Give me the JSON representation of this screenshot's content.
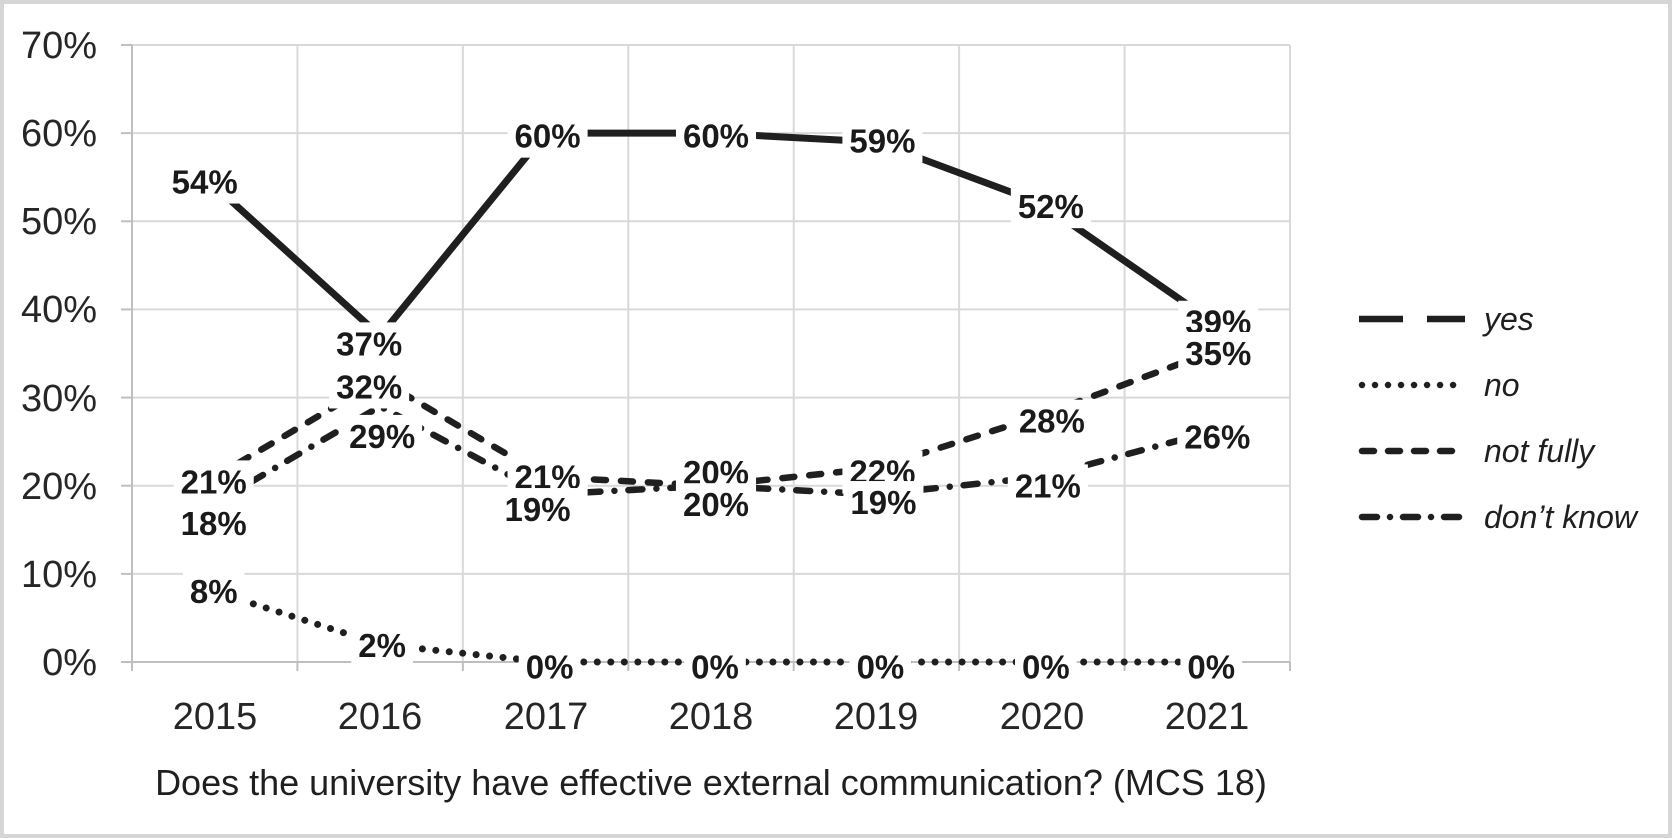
{
  "chart_data": {
    "type": "line",
    "caption": "Does the university have effective external communication? (MCS 18)",
    "categories": [
      "2015",
      "2016",
      "2017",
      "2018",
      "2019",
      "2020",
      "2021"
    ],
    "y_axis": {
      "min": 0,
      "max": 70,
      "step": 10,
      "tick_labels": [
        "0%",
        "10%",
        "20%",
        "30%",
        "40%",
        "50%",
        "60%",
        "70%"
      ]
    },
    "grid": true,
    "legend_position": "right",
    "series": [
      {
        "name": "yes",
        "line_style": "solid",
        "values": [
          54,
          37,
          60,
          60,
          59,
          52,
          39
        ],
        "point_labels": [
          "54%",
          "37%",
          "60%",
          "60%",
          "59%",
          "52%",
          "39%"
        ],
        "label_offsets": [
          [
            -10,
            -4
          ],
          [
            -11,
            8
          ],
          [
            2,
            3
          ],
          [
            5,
            3
          ],
          [
            6,
            -1
          ],
          [
            9,
            3
          ],
          [
            11,
            4
          ]
        ]
      },
      {
        "name": "no",
        "line_style": "dotted",
        "values": [
          8,
          2,
          0,
          0,
          0,
          0,
          0
        ],
        "point_labels": [
          "8%",
          "2%",
          "0%",
          "0%",
          "0%",
          "0%",
          "0%"
        ],
        "label_offsets": [
          [
            -1,
            0
          ],
          [
            2,
            1
          ],
          [
            4,
            5
          ],
          [
            4,
            5
          ],
          [
            4,
            5
          ],
          [
            4,
            5
          ],
          [
            4,
            5
          ]
        ]
      },
      {
        "name": "not fully",
        "line_style": "dashed",
        "values": [
          21,
          32,
          21,
          20,
          22,
          28,
          35
        ],
        "point_labels": [
          "21%",
          "32%",
          "21%",
          "20%",
          "22%",
          "28%",
          "35%"
        ],
        "label_offsets": [
          [
            -1,
            5
          ],
          [
            -11,
            7
          ],
          [
            2,
            0
          ],
          [
            5,
            -13
          ],
          [
            6,
            4
          ],
          [
            10,
            6
          ],
          [
            11,
            0
          ]
        ]
      },
      {
        "name": "don’t know",
        "line_style": "dash-dot",
        "values": [
          18,
          29,
          19,
          20,
          19,
          21,
          26
        ],
        "point_labels": [
          "18%",
          "29%",
          "19%",
          "20%",
          "19%",
          "21%",
          "26%"
        ],
        "label_offsets": [
          [
            -1,
            20
          ],
          [
            2,
            30
          ],
          [
            -8,
            15
          ],
          [
            5,
            19
          ],
          [
            7,
            8
          ],
          [
            6,
            9
          ],
          [
            10,
            4
          ]
        ]
      }
    ],
    "colors": {
      "line": "#1f1f1f",
      "grid": "#d9d9d9",
      "axis": "#bfbfbf",
      "label_text": "#1a1a1a",
      "background": "#ffffff",
      "border": "#d6d6d6"
    }
  }
}
